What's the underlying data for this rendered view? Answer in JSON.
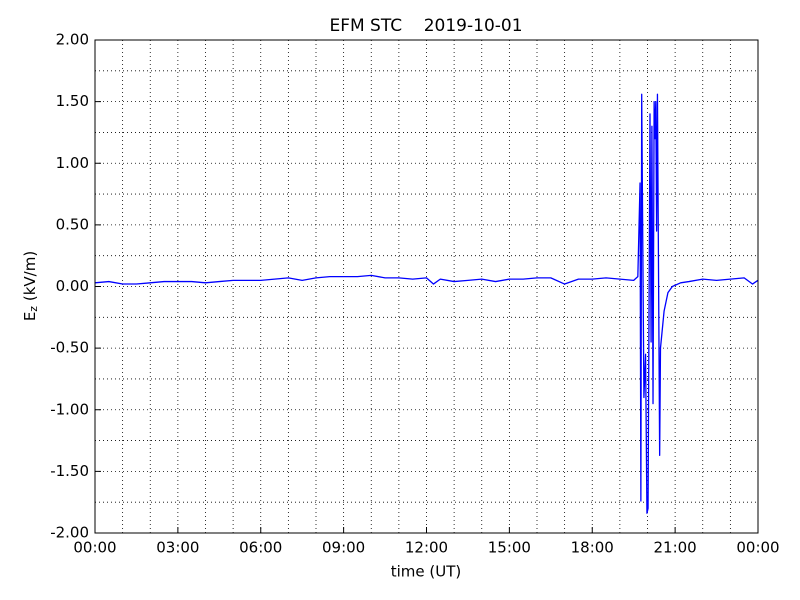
{
  "chart_data": {
    "type": "line",
    "title": "EFM STC    2019-10-01",
    "xlabel": "time (UT)",
    "ylabel": {
      "base": "E",
      "sub": "z",
      "rest": " (kV/m)"
    },
    "x": [
      0,
      0.5,
      1,
      1.5,
      2,
      2.5,
      3,
      3.5,
      4,
      4.5,
      5,
      5.5,
      6,
      6.5,
      7,
      7.5,
      8,
      8.5,
      9,
      9.5,
      10,
      10.5,
      11,
      11.5,
      12,
      12.25,
      12.5,
      13,
      13.5,
      14,
      14.5,
      15,
      15.5,
      16,
      16.5,
      17,
      17.5,
      18,
      18.5,
      19,
      19.5,
      19.65,
      19.73,
      19.76,
      19.79,
      19.87,
      19.93,
      19.98,
      20.02,
      20.09,
      20.13,
      20.16,
      20.2,
      20.24,
      20.27,
      20.3,
      20.33,
      20.36,
      20.44,
      20.47,
      20.6,
      20.74,
      20.9,
      21.2,
      21.5,
      22,
      22.5,
      23,
      23.5,
      23.8,
      24
    ],
    "series": [
      {
        "name": "Ez",
        "color": "#0000ff",
        "values": [
          0.03,
          0.04,
          0.02,
          0.02,
          0.03,
          0.04,
          0.04,
          0.04,
          0.03,
          0.04,
          0.05,
          0.05,
          0.05,
          0.06,
          0.07,
          0.05,
          0.07,
          0.08,
          0.08,
          0.08,
          0.09,
          0.07,
          0.07,
          0.06,
          0.07,
          0.02,
          0.06,
          0.04,
          0.05,
          0.06,
          0.04,
          0.06,
          0.06,
          0.07,
          0.07,
          0.02,
          0.06,
          0.06,
          0.07,
          0.06,
          0.05,
          0.08,
          0.84,
          -1.74,
          1.56,
          -0.9,
          -0.55,
          -1.84,
          -1.8,
          1.4,
          -0.45,
          1.3,
          -0.95,
          1.5,
          1.2,
          1.5,
          0.45,
          1.56,
          -1.37,
          -0.5,
          -0.2,
          -0.05,
          0.0,
          0.03,
          0.04,
          0.06,
          0.05,
          0.06,
          0.07,
          0.02,
          0.05
        ]
      }
    ],
    "xlim": [
      0,
      24
    ],
    "xticks": [
      {
        "value": 0,
        "label": "00:00"
      },
      {
        "value": 3,
        "label": "03:00"
      },
      {
        "value": 6,
        "label": "06:00"
      },
      {
        "value": 9,
        "label": "09:00"
      },
      {
        "value": 12,
        "label": "12:00"
      },
      {
        "value": 15,
        "label": "15:00"
      },
      {
        "value": 18,
        "label": "18:00"
      },
      {
        "value": 21,
        "label": "21:00"
      },
      {
        "value": 24,
        "label": "00:00"
      }
    ],
    "xminorticks": [
      1,
      2,
      4,
      5,
      7,
      8,
      10,
      11,
      13,
      14,
      16,
      17,
      19,
      20,
      22,
      23
    ],
    "ylim": [
      -2,
      2
    ],
    "yticks": [
      {
        "value": -2,
        "label": "-2.00"
      },
      {
        "value": -1.5,
        "label": "-1.50"
      },
      {
        "value": -1,
        "label": "-1.00"
      },
      {
        "value": -0.5,
        "label": "-0.50"
      },
      {
        "value": 0,
        "label": "0.00"
      },
      {
        "value": 0.5,
        "label": "0.50"
      },
      {
        "value": 1,
        "label": "1.00"
      },
      {
        "value": 1.5,
        "label": "1.50"
      },
      {
        "value": 2,
        "label": "2.00"
      }
    ],
    "yminorticks": [
      -1.75,
      -1.25,
      -0.75,
      -0.25,
      0.25,
      0.75,
      1.25,
      1.75
    ],
    "grid": true
  }
}
